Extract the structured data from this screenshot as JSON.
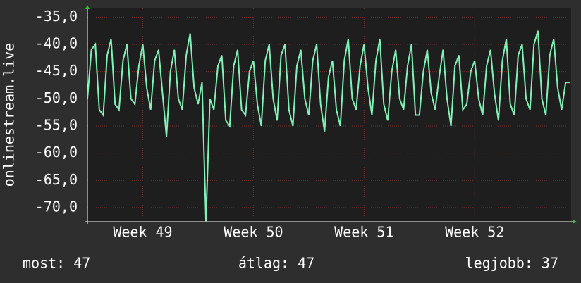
{
  "chart_data": {
    "type": "line",
    "ylabel": "onlinestream.live",
    "xlim": [
      0,
      30.6
    ],
    "xticks": [
      {
        "value": 3.5,
        "label": "Week 49"
      },
      {
        "value": 10.5,
        "label": "Week 50"
      },
      {
        "value": 17.5,
        "label": "Week 51"
      },
      {
        "value": 24.5,
        "label": "Week 52"
      }
    ],
    "ylim": [
      -72.6,
      -33.4
    ],
    "yticks": [
      {
        "value": -35,
        "label": "-35,0"
      },
      {
        "value": -40,
        "label": "-40,0"
      },
      {
        "value": -45,
        "label": "-45,0"
      },
      {
        "value": -50,
        "label": "-50,0"
      },
      {
        "value": -55,
        "label": "-55,0"
      },
      {
        "value": -60,
        "label": "-60,0"
      },
      {
        "value": -65,
        "label": "-65,0"
      },
      {
        "value": -70,
        "label": "-70,0"
      }
    ],
    "grid": true,
    "x": [
      0,
      0.25,
      0.5,
      0.75,
      1,
      1.25,
      1.5,
      1.75,
      2,
      2.25,
      2.5,
      2.75,
      3,
      3.25,
      3.5,
      3.75,
      4,
      4.25,
      4.5,
      4.75,
      5,
      5.25,
      5.5,
      5.75,
      6,
      6.25,
      6.5,
      6.75,
      7,
      7.25,
      7.5,
      7.75,
      8,
      8.25,
      8.5,
      8.75,
      9,
      9.25,
      9.5,
      9.75,
      10,
      10.25,
      10.5,
      10.75,
      11,
      11.25,
      11.5,
      11.75,
      12,
      12.25,
      12.5,
      12.75,
      13,
      13.25,
      13.5,
      13.75,
      14,
      14.25,
      14.5,
      14.75,
      15,
      15.25,
      15.5,
      15.75,
      16,
      16.25,
      16.5,
      16.75,
      17,
      17.25,
      17.5,
      17.75,
      18,
      18.25,
      18.5,
      18.75,
      19,
      19.25,
      19.5,
      19.75,
      20,
      20.25,
      20.5,
      20.75,
      21,
      21.25,
      21.5,
      21.75,
      22,
      22.25,
      22.5,
      22.75,
      23,
      23.25,
      23.5,
      23.75,
      24,
      24.25,
      24.5,
      24.75,
      25,
      25.25,
      25.5,
      25.75,
      26,
      26.25,
      26.5,
      26.75,
      27,
      27.25,
      27.5,
      27.75,
      28,
      28.25,
      28.5,
      28.75,
      29,
      29.25,
      29.5,
      29.75,
      30,
      30.25,
      30.5
    ],
    "series": [
      {
        "color": "#80f2b8",
        "values": [
          -50,
          -41,
          -40,
          -52,
          -53,
          -42,
          -39,
          -51,
          -52,
          -43,
          -40,
          -50,
          -51,
          -44,
          -40,
          -48,
          -52,
          -43,
          -41,
          -49,
          -57,
          -45,
          -41,
          -50,
          -52,
          -42,
          -38,
          -48,
          -51,
          -47,
          -72.5,
          -50,
          -52,
          -44,
          -42,
          -54,
          -55,
          -44,
          -41,
          -52,
          -53,
          -45,
          -43,
          -51,
          -55,
          -43,
          -40,
          -50,
          -54,
          -42,
          -40,
          -52,
          -55,
          -44,
          -41,
          -50,
          -53,
          -43,
          -40,
          -51,
          -56,
          -46,
          -43,
          -52,
          -55,
          -43,
          -39,
          -50,
          -52,
          -44,
          -40,
          -48,
          -53,
          -43,
          -39,
          -51,
          -54,
          -45,
          -41,
          -50,
          -52,
          -44,
          -40,
          -53,
          -53,
          -45,
          -41,
          -49,
          -52,
          -46,
          -41,
          -50,
          -55,
          -44,
          -42,
          -52,
          -51,
          -45,
          -43,
          -50,
          -53,
          -44,
          -41,
          -49,
          -54,
          -43,
          -39,
          -51,
          -53,
          -42,
          -40,
          -50,
          -52,
          -40,
          -37.5,
          -50,
          -53,
          -42,
          -39,
          -48,
          -52,
          -47,
          -47
        ]
      }
    ],
    "annotations": [
      "most: 47",
      "átlag: 47",
      "legjobb: 37"
    ]
  }
}
